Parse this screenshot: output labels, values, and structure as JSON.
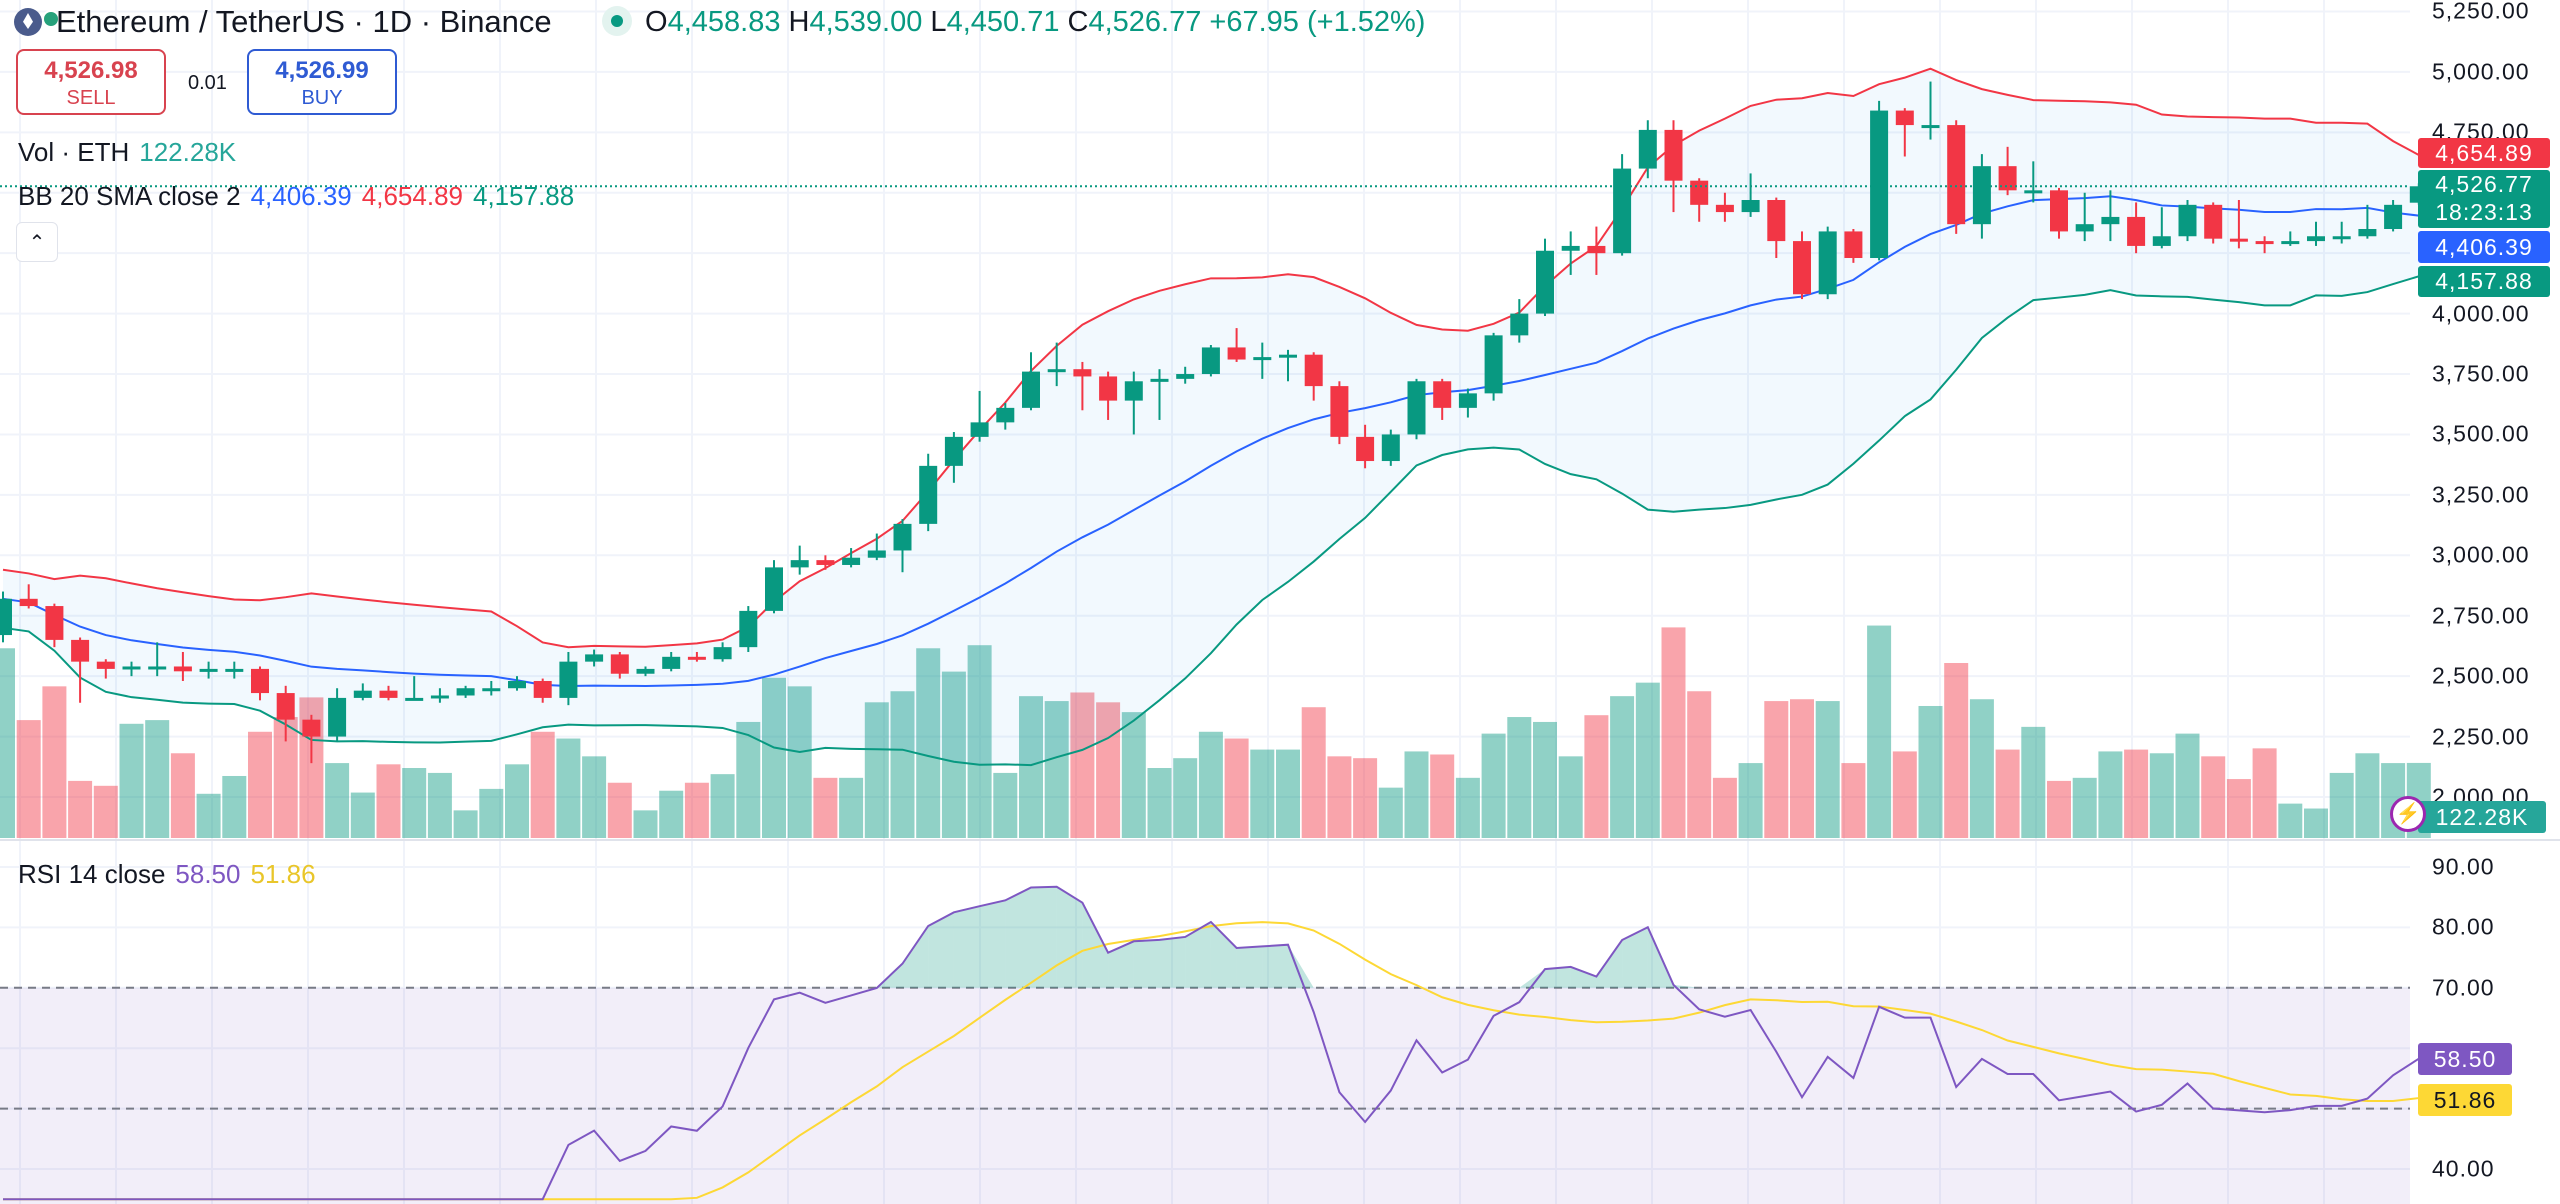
{
  "header": {
    "symbol_title": "Ethereum / TetherUS · 1D · Binance",
    "ohlc": {
      "o_label": "O",
      "o": "4,458.83",
      "h_label": "H",
      "h": "4,539.00",
      "l_label": "L",
      "l": "4,450.71",
      "c_label": "C",
      "c": "4,526.77",
      "change": "+67.95 (+1.52%)"
    },
    "sell": {
      "price": "4,526.98",
      "label": "SELL"
    },
    "spread": "0.01",
    "buy": {
      "price": "4,526.99",
      "label": "BUY"
    }
  },
  "legends": {
    "volume": {
      "name": "Vol · ETH",
      "value": "122.28K"
    },
    "bb": {
      "name": "BB 20 SMA close 2",
      "basis": "4,406.39",
      "upper": "4,654.89",
      "lower": "4,157.88"
    },
    "rsi": {
      "name": "RSI 14 close",
      "value": "58.50",
      "ma": "51.86"
    },
    "collapse_icon": "chevron-up-icon"
  },
  "price_axis": [
    "5,250.00",
    "5,000.00",
    "4,750.00",
    "4,000.00",
    "3,750.00",
    "3,500.00",
    "3,250.00",
    "3,000.00",
    "2,750.00",
    "2,500.00",
    "2,250.00",
    "2,000.00"
  ],
  "rsi_axis": [
    "90.00",
    "80.00",
    "70.00",
    "40.00"
  ],
  "tags": {
    "bb_upper": "4,654.89",
    "last_price": "4,526.77",
    "countdown": "18:23:13",
    "bb_basis": "4,406.39",
    "bb_lower": "4,157.88",
    "volume": "122.28K",
    "rsi": "58.50",
    "rsi_ma": "51.86"
  },
  "colors": {
    "up": "#089981",
    "down": "#F23645",
    "bb_basis": "#2962FF",
    "bb_upper": "#F23645",
    "bb_lower": "#089981",
    "rsi": "#7E57C2",
    "rsi_ma": "#FDD835"
  },
  "chart_data": {
    "type": "candlestick",
    "symbol": "ETH/USDT",
    "interval": "1D",
    "price_range": [
      1870,
      5280
    ],
    "rsi_range": [
      35,
      93
    ],
    "rsi_levels": [
      70,
      50
    ],
    "bb": {
      "period": 20,
      "stddev": 2
    },
    "ohlc": [
      [
        2670,
        2850,
        2640,
        2820
      ],
      [
        2820,
        2880,
        2780,
        2790
      ],
      [
        2790,
        2800,
        2620,
        2650
      ],
      [
        2650,
        2660,
        2390,
        2560
      ],
      [
        2560,
        2570,
        2490,
        2530
      ],
      [
        2530,
        2560,
        2500,
        2540
      ],
      [
        2540,
        2640,
        2500,
        2540
      ],
      [
        2540,
        2600,
        2480,
        2520
      ],
      [
        2520,
        2560,
        2490,
        2530
      ],
      [
        2530,
        2560,
        2490,
        2530
      ],
      [
        2530,
        2540,
        2400,
        2430
      ],
      [
        2430,
        2460,
        2230,
        2320
      ],
      [
        2320,
        2340,
        2140,
        2250
      ],
      [
        2250,
        2450,
        2230,
        2410
      ],
      [
        2410,
        2470,
        2400,
        2440
      ],
      [
        2440,
        2460,
        2400,
        2410
      ],
      [
        2410,
        2500,
        2400,
        2410
      ],
      [
        2410,
        2450,
        2390,
        2420
      ],
      [
        2420,
        2460,
        2410,
        2450
      ],
      [
        2450,
        2480,
        2420,
        2450
      ],
      [
        2450,
        2500,
        2440,
        2480
      ],
      [
        2480,
        2490,
        2390,
        2410
      ],
      [
        2410,
        2600,
        2380,
        2560
      ],
      [
        2560,
        2610,
        2540,
        2590
      ],
      [
        2590,
        2600,
        2490,
        2510
      ],
      [
        2510,
        2540,
        2500,
        2530
      ],
      [
        2530,
        2600,
        2520,
        2580
      ],
      [
        2580,
        2600,
        2560,
        2570
      ],
      [
        2570,
        2640,
        2560,
        2620
      ],
      [
        2620,
        2790,
        2600,
        2770
      ],
      [
        2770,
        2980,
        2760,
        2950
      ],
      [
        2950,
        3040,
        2920,
        2980
      ],
      [
        2980,
        3000,
        2940,
        2960
      ],
      [
        2960,
        3030,
        2950,
        2990
      ],
      [
        2990,
        3090,
        2980,
        3020
      ],
      [
        3020,
        3150,
        2930,
        3130
      ],
      [
        3130,
        3420,
        3100,
        3370
      ],
      [
        3370,
        3510,
        3300,
        3490
      ],
      [
        3490,
        3680,
        3470,
        3550
      ],
      [
        3550,
        3630,
        3520,
        3610
      ],
      [
        3610,
        3840,
        3600,
        3760
      ],
      [
        3760,
        3880,
        3700,
        3770
      ],
      [
        3770,
        3800,
        3600,
        3740
      ],
      [
        3740,
        3760,
        3560,
        3640
      ],
      [
        3640,
        3760,
        3500,
        3720
      ],
      [
        3720,
        3770,
        3560,
        3730
      ],
      [
        3730,
        3780,
        3710,
        3750
      ],
      [
        3750,
        3870,
        3740,
        3860
      ],
      [
        3860,
        3940,
        3800,
        3810
      ],
      [
        3810,
        3880,
        3730,
        3820
      ],
      [
        3820,
        3850,
        3720,
        3830
      ],
      [
        3830,
        3840,
        3640,
        3700
      ],
      [
        3700,
        3720,
        3460,
        3490
      ],
      [
        3490,
        3540,
        3360,
        3390
      ],
      [
        3390,
        3520,
        3370,
        3500
      ],
      [
        3500,
        3730,
        3480,
        3720
      ],
      [
        3720,
        3730,
        3560,
        3610
      ],
      [
        3610,
        3690,
        3570,
        3670
      ],
      [
        3670,
        3920,
        3640,
        3910
      ],
      [
        3910,
        4060,
        3880,
        4000
      ],
      [
        4000,
        4310,
        3990,
        4260
      ],
      [
        4260,
        4340,
        4160,
        4280
      ],
      [
        4280,
        4360,
        4160,
        4250
      ],
      [
        4250,
        4660,
        4240,
        4600
      ],
      [
        4600,
        4800,
        4560,
        4760
      ],
      [
        4760,
        4800,
        4420,
        4550
      ],
      [
        4550,
        4560,
        4380,
        4450
      ],
      [
        4450,
        4500,
        4380,
        4420
      ],
      [
        4420,
        4580,
        4400,
        4470
      ],
      [
        4470,
        4480,
        4230,
        4300
      ],
      [
        4300,
        4340,
        4060,
        4080
      ],
      [
        4080,
        4360,
        4060,
        4340
      ],
      [
        4340,
        4350,
        4210,
        4230
      ],
      [
        4230,
        4880,
        4220,
        4840
      ],
      [
        4840,
        4850,
        4650,
        4780
      ],
      [
        4780,
        4960,
        4720,
        4780
      ],
      [
        4780,
        4800,
        4330,
        4370
      ],
      [
        4370,
        4660,
        4310,
        4610
      ],
      [
        4610,
        4690,
        4490,
        4510
      ],
      [
        4510,
        4630,
        4460,
        4510
      ],
      [
        4510,
        4520,
        4310,
        4340
      ],
      [
        4340,
        4500,
        4300,
        4370
      ],
      [
        4370,
        4510,
        4300,
        4400
      ],
      [
        4400,
        4460,
        4250,
        4280
      ],
      [
        4280,
        4440,
        4270,
        4320
      ],
      [
        4320,
        4470,
        4300,
        4450
      ],
      [
        4450,
        4460,
        4290,
        4310
      ],
      [
        4310,
        4470,
        4270,
        4300
      ],
      [
        4300,
        4320,
        4250,
        4290
      ],
      [
        4290,
        4340,
        4280,
        4300
      ],
      [
        4300,
        4380,
        4280,
        4320
      ],
      [
        4320,
        4380,
        4290,
        4320
      ],
      [
        4320,
        4450,
        4310,
        4350
      ],
      [
        4350,
        4470,
        4340,
        4450
      ],
      [
        4458.83,
        4539,
        4450.71,
        4526.77
      ]
    ],
    "volume_k": [
      309,
      192,
      247,
      93,
      85,
      186,
      192,
      138,
      72,
      101,
      173,
      197,
      229,
      122,
      74,
      120,
      114,
      106,
      45,
      80,
      120,
      173,
      162,
      133,
      90,
      45,
      77,
      90,
      104,
      189,
      261,
      247,
      98,
      98,
      221,
      239,
      309,
      271,
      314,
      106,
      231,
      223,
      237,
      221,
      205,
      114,
      130,
      173,
      162,
      144,
      144,
      213,
      133,
      130,
      82,
      141,
      136,
      98,
      170,
      197,
      189,
      133,
      200,
      231,
      253,
      343,
      239,
      98,
      122,
      223,
      226,
      223,
      122,
      346,
      141,
      215,
      285,
      226,
      144,
      181,
      93,
      98,
      141,
      144,
      138,
      170,
      133,
      96,
      146,
      56,
      48,
      106,
      138,
      122,
      122.28
    ]
  }
}
